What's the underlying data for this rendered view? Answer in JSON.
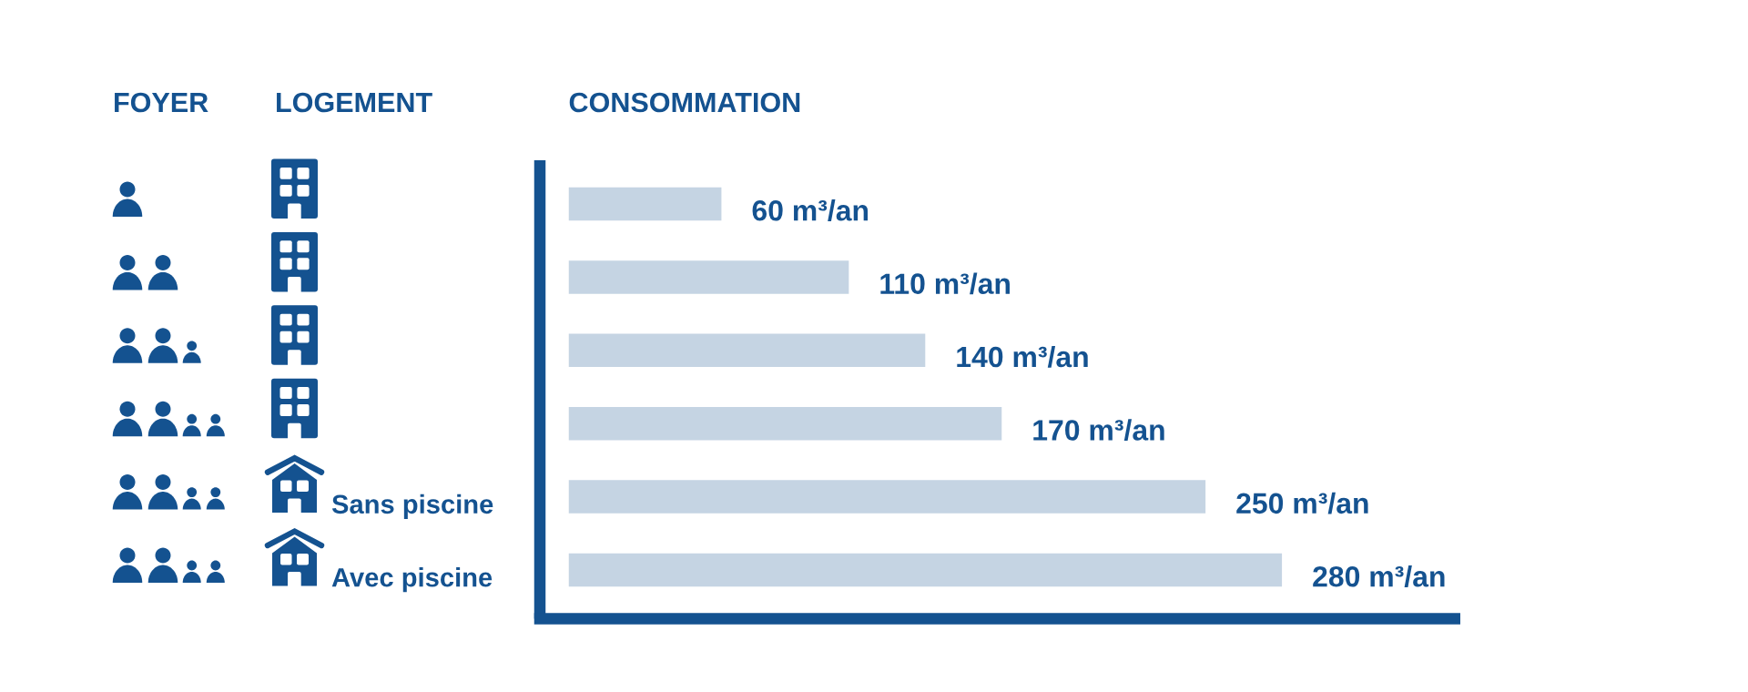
{
  "chart_data": {
    "type": "bar",
    "orientation": "horizontal",
    "title": "CONSOMMATION",
    "annotations": [
      "FOYER",
      "LOGEMENT"
    ],
    "categories": [
      null,
      null,
      null,
      null,
      "Sans piscine",
      "Avec piscine"
    ],
    "values": [
      60,
      110,
      140,
      170,
      250,
      280
    ],
    "color": "#c5d4e3",
    "value_labels": [
      "60 m³/an",
      "110 m³/an",
      "140 m³/an",
      "170 m³/an",
      "250 m³/an",
      "280 m³/an"
    ],
    "xlim": [
      0,
      350
    ],
    "tick_labels": "y"
  }
}
